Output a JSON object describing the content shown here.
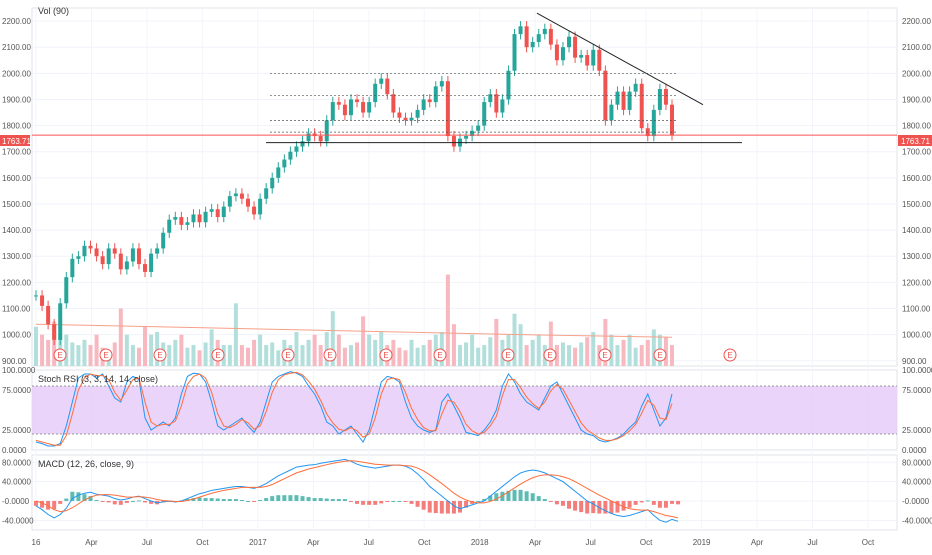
{
  "chart_data": [
    {
      "type": "candlestick",
      "panel": "price",
      "indicator_label": "Vol (90)",
      "y_ticks": [
        "2200.00",
        "2100.00",
        "2000.00",
        "1900.00",
        "1800.00",
        "1700.00",
        "1600.00",
        "1500.00",
        "1400.00",
        "1300.00",
        "1200.00",
        "1100.00",
        "1000.00",
        "900.00"
      ],
      "y_range": [
        880,
        2250
      ],
      "last_price_label": "1763.71",
      "last_price": 1763.71,
      "earnings_marker_text": "E",
      "earnings_marker_count": 14,
      "price_path": [
        [
          0,
          1150
        ],
        [
          1,
          1110
        ],
        [
          2,
          1040
        ],
        [
          3,
          980
        ],
        [
          4,
          1120
        ],
        [
          5,
          1220
        ],
        [
          6,
          1290
        ],
        [
          7,
          1300
        ],
        [
          8,
          1340
        ],
        [
          9,
          1330
        ],
        [
          10,
          1300
        ],
        [
          11,
          1270
        ],
        [
          12,
          1330
        ],
        [
          13,
          1310
        ],
        [
          14,
          1250
        ],
        [
          15,
          1280
        ],
        [
          16,
          1330
        ],
        [
          17,
          1270
        ],
        [
          18,
          1240
        ],
        [
          19,
          1310
        ],
        [
          20,
          1330
        ],
        [
          21,
          1390
        ],
        [
          22,
          1440
        ],
        [
          23,
          1450
        ],
        [
          24,
          1420
        ],
        [
          25,
          1430
        ],
        [
          26,
          1460
        ],
        [
          27,
          1430
        ],
        [
          28,
          1470
        ],
        [
          29,
          1480
        ],
        [
          30,
          1450
        ],
        [
          31,
          1490
        ],
        [
          32,
          1530
        ],
        [
          33,
          1540
        ],
        [
          34,
          1520
        ],
        [
          35,
          1490
        ],
        [
          36,
          1460
        ],
        [
          37,
          1520
        ],
        [
          38,
          1560
        ],
        [
          39,
          1600
        ],
        [
          40,
          1640
        ],
        [
          41,
          1670
        ],
        [
          42,
          1700
        ],
        [
          43,
          1720
        ],
        [
          44,
          1740
        ],
        [
          45,
          1770
        ],
        [
          46,
          1760
        ],
        [
          47,
          1740
        ],
        [
          48,
          1820
        ],
        [
          49,
          1890
        ],
        [
          50,
          1880
        ],
        [
          51,
          1840
        ],
        [
          52,
          1900
        ],
        [
          53,
          1890
        ],
        [
          54,
          1850
        ],
        [
          55,
          1890
        ],
        [
          56,
          1960
        ],
        [
          57,
          1980
        ],
        [
          58,
          1920
        ],
        [
          59,
          1850
        ],
        [
          60,
          1830
        ],
        [
          61,
          1820
        ],
        [
          62,
          1830
        ],
        [
          63,
          1860
        ],
        [
          64,
          1900
        ],
        [
          65,
          1890
        ],
        [
          66,
          1950
        ],
        [
          67,
          1970
        ],
        [
          68,
          1760
        ],
        [
          69,
          1720
        ],
        [
          70,
          1750
        ],
        [
          71,
          1760
        ],
        [
          72,
          1780
        ],
        [
          73,
          1800
        ],
        [
          74,
          1890
        ],
        [
          75,
          1920
        ],
        [
          76,
          1850
        ],
        [
          77,
          1900
        ],
        [
          78,
          2010
        ],
        [
          79,
          2150
        ],
        [
          80,
          2180
        ],
        [
          81,
          2100
        ],
        [
          82,
          2120
        ],
        [
          83,
          2150
        ],
        [
          84,
          2170
        ],
        [
          85,
          2110
        ],
        [
          86,
          2050
        ],
        [
          87,
          2100
        ],
        [
          88,
          2140
        ],
        [
          89,
          2060
        ],
        [
          90,
          2070
        ],
        [
          91,
          2030
        ],
        [
          92,
          2090
        ],
        [
          93,
          2010
        ],
        [
          94,
          1820
        ],
        [
          95,
          1880
        ],
        [
          96,
          1930
        ],
        [
          97,
          1860
        ],
        [
          98,
          1930
        ],
        [
          99,
          1960
        ],
        [
          100,
          1790
        ],
        [
          101,
          1760
        ],
        [
          102,
          1860
        ],
        [
          103,
          1940
        ],
        [
          104,
          1880
        ],
        [
          105,
          1763
        ]
      ],
      "volume_path": [
        [
          0,
          1030
        ],
        [
          1,
          1000
        ],
        [
          2,
          980
        ],
        [
          3,
          1050
        ],
        [
          4,
          990
        ],
        [
          5,
          1000
        ],
        [
          6,
          970
        ],
        [
          7,
          960
        ],
        [
          8,
          980
        ],
        [
          9,
          960
        ],
        [
          10,
          1000
        ],
        [
          11,
          950
        ],
        [
          12,
          940
        ],
        [
          13,
          970
        ],
        [
          14,
          1100
        ],
        [
          15,
          1000
        ],
        [
          16,
          960
        ],
        [
          17,
          950
        ],
        [
          18,
          1030
        ],
        [
          19,
          1000
        ],
        [
          20,
          1010
        ],
        [
          21,
          970
        ],
        [
          22,
          960
        ],
        [
          23,
          980
        ],
        [
          24,
          1000
        ],
        [
          25,
          950
        ],
        [
          26,
          960
        ],
        [
          27,
          940
        ],
        [
          28,
          970
        ],
        [
          29,
          1020
        ],
        [
          30,
          980
        ],
        [
          31,
          960
        ],
        [
          32,
          960
        ],
        [
          33,
          1120
        ],
        [
          34,
          960
        ],
        [
          35,
          950
        ],
        [
          36,
          980
        ],
        [
          37,
          1000
        ],
        [
          38,
          960
        ],
        [
          39,
          970
        ],
        [
          40,
          940
        ],
        [
          41,
          980
        ],
        [
          42,
          960
        ],
        [
          43,
          1010
        ],
        [
          44,
          960
        ],
        [
          45,
          980
        ],
        [
          46,
          1000
        ],
        [
          47,
          960
        ],
        [
          48,
          1010
        ],
        [
          49,
          1090
        ],
        [
          50,
          1000
        ],
        [
          51,
          950
        ],
        [
          52,
          960
        ],
        [
          53,
          970
        ],
        [
          54,
          1070
        ],
        [
          55,
          1000
        ],
        [
          56,
          980
        ],
        [
          57,
          1010
        ],
        [
          58,
          960
        ],
        [
          59,
          980
        ],
        [
          60,
          950
        ],
        [
          61,
          940
        ],
        [
          62,
          980
        ],
        [
          63,
          950
        ],
        [
          64,
          960
        ],
        [
          65,
          980
        ],
        [
          66,
          1000
        ],
        [
          67,
          1010
        ],
        [
          68,
          1230
        ],
        [
          69,
          1040
        ],
        [
          70,
          960
        ],
        [
          71,
          970
        ],
        [
          72,
          1000
        ],
        [
          73,
          950
        ],
        [
          74,
          960
        ],
        [
          75,
          990
        ],
        [
          76,
          1060
        ],
        [
          77,
          980
        ],
        [
          78,
          1000
        ],
        [
          79,
          1080
        ],
        [
          80,
          1040
        ],
        [
          81,
          960
        ],
        [
          82,
          980
        ],
        [
          83,
          1000
        ],
        [
          84,
          960
        ],
        [
          85,
          1050
        ],
        [
          86,
          960
        ],
        [
          87,
          970
        ],
        [
          88,
          960
        ],
        [
          89,
          950
        ],
        [
          90,
          970
        ],
        [
          91,
          990
        ],
        [
          92,
          1010
        ],
        [
          93,
          960
        ],
        [
          94,
          1060
        ],
        [
          95,
          1000
        ],
        [
          96,
          960
        ],
        [
          97,
          980
        ],
        [
          98,
          1000
        ],
        [
          99,
          950
        ],
        [
          100,
          960
        ],
        [
          101,
          980
        ],
        [
          102,
          1020
        ],
        [
          103,
          1000
        ],
        [
          104,
          990
        ],
        [
          105,
          960
        ]
      ],
      "volume_ma": [
        [
          0,
          1040
        ],
        [
          20,
          1030
        ],
        [
          40,
          1020
        ],
        [
          60,
          1010
        ],
        [
          80,
          1000
        ],
        [
          105,
          990
        ]
      ]
    },
    {
      "type": "line",
      "panel": "stoch_rsi",
      "label": "Stoch RSI (3, 3, 14, 14, close)",
      "y_ticks": [
        "100.0000",
        "75.0000",
        "25.0000",
        "0.0000"
      ],
      "y_range": [
        0,
        100
      ],
      "band": [
        20,
        80
      ],
      "series": [
        {
          "values": [
            10,
            8,
            5,
            5,
            8,
            30,
            60,
            90,
            95,
            95,
            90,
            95,
            80,
            65,
            60,
            85,
            92,
            88,
            40,
            25,
            30,
            35,
            30,
            40,
            70,
            92,
            96,
            95,
            85,
            60,
            30,
            25,
            30,
            35,
            40,
            30,
            22,
            35,
            60,
            85,
            92,
            95,
            98,
            96,
            92,
            80,
            70,
            55,
            35,
            30,
            20,
            25,
            30,
            20,
            10,
            25,
            55,
            85,
            92,
            90,
            85,
            60,
            40,
            30,
            25,
            22,
            25,
            60,
            70,
            55,
            40,
            22,
            20,
            18,
            25,
            35,
            50,
            80,
            95,
            85,
            70,
            60,
            55,
            50,
            65,
            80,
            85,
            70,
            55,
            40,
            25,
            20,
            18,
            12,
            10,
            12,
            15,
            20,
            28,
            35,
            55,
            70,
            50,
            30,
            40,
            70
          ]
        },
        {
          "values": [
            12,
            10,
            8,
            6,
            6,
            18,
            45,
            75,
            90,
            95,
            93,
            93,
            88,
            72,
            62,
            75,
            88,
            90,
            60,
            35,
            30,
            32,
            32,
            36,
            55,
            82,
            92,
            95,
            90,
            72,
            45,
            30,
            28,
            32,
            38,
            34,
            26,
            30,
            48,
            72,
            88,
            94,
            96,
            97,
            94,
            86,
            76,
            62,
            45,
            34,
            26,
            24,
            28,
            24,
            16,
            20,
            40,
            70,
            88,
            90,
            88,
            72,
            52,
            38,
            28,
            24,
            24,
            45,
            62,
            60,
            48,
            32,
            24,
            20,
            22,
            30,
            42,
            68,
            88,
            88,
            78,
            66,
            58,
            52,
            60,
            74,
            82,
            76,
            62,
            48,
            34,
            25,
            20,
            15,
            12,
            12,
            14,
            18,
            24,
            32,
            46,
            62,
            56,
            40,
            38,
            58
          ]
        }
      ]
    },
    {
      "type": "macd",
      "panel": "macd",
      "label": "MACD (12, 26, close, 9)",
      "y_ticks": [
        "80.0000",
        "40.0000",
        "-0.0000",
        "-40.0000"
      ],
      "y_range": [
        -60,
        95
      ],
      "series": [
        {
          "name": "MACD",
          "values": [
            -10,
            -18,
            -28,
            -35,
            -28,
            -15,
            5,
            12,
            16,
            18,
            14,
            12,
            10,
            5,
            2,
            4,
            8,
            10,
            5,
            0,
            -4,
            -2,
            0,
            -2,
            0,
            5,
            10,
            15,
            18,
            22,
            24,
            26,
            28,
            30,
            30,
            28,
            26,
            30,
            36,
            44,
            52,
            58,
            64,
            70,
            72,
            74,
            75,
            78,
            80,
            82,
            84,
            86,
            82,
            76,
            72,
            70,
            68,
            70,
            72,
            74,
            74,
            72,
            66,
            56,
            44,
            30,
            20,
            10,
            0,
            -10,
            -16,
            -12,
            -8,
            -4,
            0,
            10,
            20,
            30,
            40,
            50,
            58,
            62,
            64,
            62,
            58,
            52,
            46,
            40,
            30,
            20,
            10,
            0,
            -6,
            -14,
            -20,
            -26,
            -30,
            -32,
            -30,
            -26,
            -22,
            -18,
            -30,
            -40,
            -44,
            -38,
            -42
          ]
        },
        {
          "name": "Signal",
          "values": [
            0,
            -4,
            -10,
            -18,
            -22,
            -20,
            -14,
            -6,
            2,
            8,
            12,
            13,
            13,
            12,
            10,
            8,
            8,
            9,
            8,
            6,
            3,
            1,
            0,
            -1,
            -1,
            1,
            4,
            8,
            12,
            16,
            19,
            22,
            24,
            26,
            28,
            28,
            28,
            28,
            30,
            34,
            40,
            46,
            52,
            58,
            62,
            66,
            69,
            72,
            75,
            78,
            80,
            82,
            83,
            82,
            80,
            78,
            76,
            75,
            74,
            74,
            74,
            73,
            72,
            68,
            62,
            54,
            45,
            36,
            26,
            16,
            8,
            2,
            -2,
            -4,
            -4,
            -1,
            4,
            11,
            19,
            27,
            35,
            42,
            48,
            52,
            54,
            54,
            53,
            50,
            46,
            40,
            33,
            26,
            19,
            12,
            6,
            0,
            -6,
            -12,
            -16,
            -18,
            -19,
            -19,
            -22,
            -26,
            -30,
            -32,
            -35
          ]
        }
      ]
    }
  ],
  "x_axis": {
    "labels": [
      "16",
      "Apr",
      "Jul",
      "Oct",
      "2017",
      "Apr",
      "Jul",
      "Oct",
      "2018",
      "Apr",
      "Jul",
      "Oct",
      "2019",
      "Apr",
      "Jul",
      "Oct"
    ]
  },
  "colors": {
    "up": "#26a69a",
    "down": "#ef5350",
    "macd": "#2196f3",
    "signal": "#ff6d3a",
    "stoch_k": "#2196f3",
    "stoch_d": "#ff6d3a",
    "band": "#e6c9f9",
    "last_price_line": "#ff5252",
    "vol_up": "#b2dfdb",
    "vol_down": "#f7b8c0"
  }
}
